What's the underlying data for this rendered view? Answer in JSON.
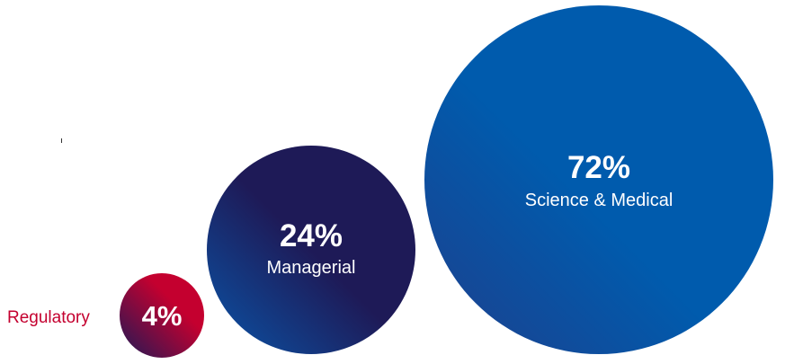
{
  "chart_data": {
    "type": "bubble",
    "title": "",
    "xlabel": "",
    "ylabel": "",
    "values": [
      4,
      24,
      72
    ],
    "unit": "%",
    "series": [
      {
        "label": "Regulatory",
        "value_text": "4%",
        "value": 4,
        "color_start": "#1e1a57",
        "color_end": "#c4002f",
        "label_color": "#c4002f",
        "label_position": "left"
      },
      {
        "label": "Managerial",
        "value_text": "24%",
        "value": 24,
        "color_start": "#0a55a8",
        "color_end": "#1e1a57",
        "label_color": "#ffffff",
        "label_position": "inside"
      },
      {
        "label": "Science & Medical",
        "value_text": "72%",
        "value": 72,
        "color_start": "#1e3f8c",
        "color_end": "#005bad",
        "label_color": "#ffffff",
        "label_position": "inside"
      }
    ]
  }
}
